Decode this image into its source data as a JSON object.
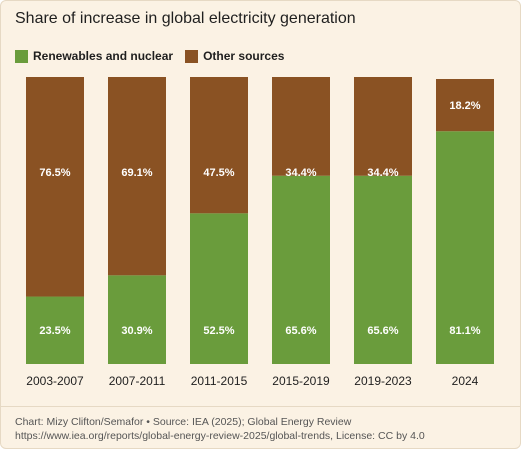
{
  "colors": {
    "renewables": "#6a9c3c",
    "other": "#8a5223",
    "background": "#fbf2e4"
  },
  "source_text": "Chart: Mizy Clifton/Semafor • Source: IEA (2025); Global Energy Review https://www.iea.org/reports/global-energy-review-2025/global-trends, License: CC by 4.0",
  "chart_data": {
    "type": "bar",
    "stacked": true,
    "title": "Share of increase in global electricity generation",
    "categories": [
      "2003-2007",
      "2007-2011",
      "2011-2015",
      "2015-2019",
      "2019-2023",
      "2024"
    ],
    "series": [
      {
        "name": "Renewables and nuclear",
        "values": [
          23.5,
          30.9,
          52.5,
          65.6,
          65.6,
          81.1
        ],
        "labels": [
          "23.5%",
          "30.9%",
          "52.5%",
          "65.6%",
          "65.6%",
          "81.1%"
        ]
      },
      {
        "name": "Other sources",
        "values": [
          76.5,
          69.1,
          47.5,
          34.4,
          34.4,
          18.2
        ],
        "labels": [
          "76.5%",
          "69.1%",
          "47.5%",
          "34.4%",
          "34.4%",
          "18.2%"
        ]
      }
    ],
    "ylim": [
      0,
      100
    ],
    "legend_position": "top-left",
    "grid": false
  }
}
